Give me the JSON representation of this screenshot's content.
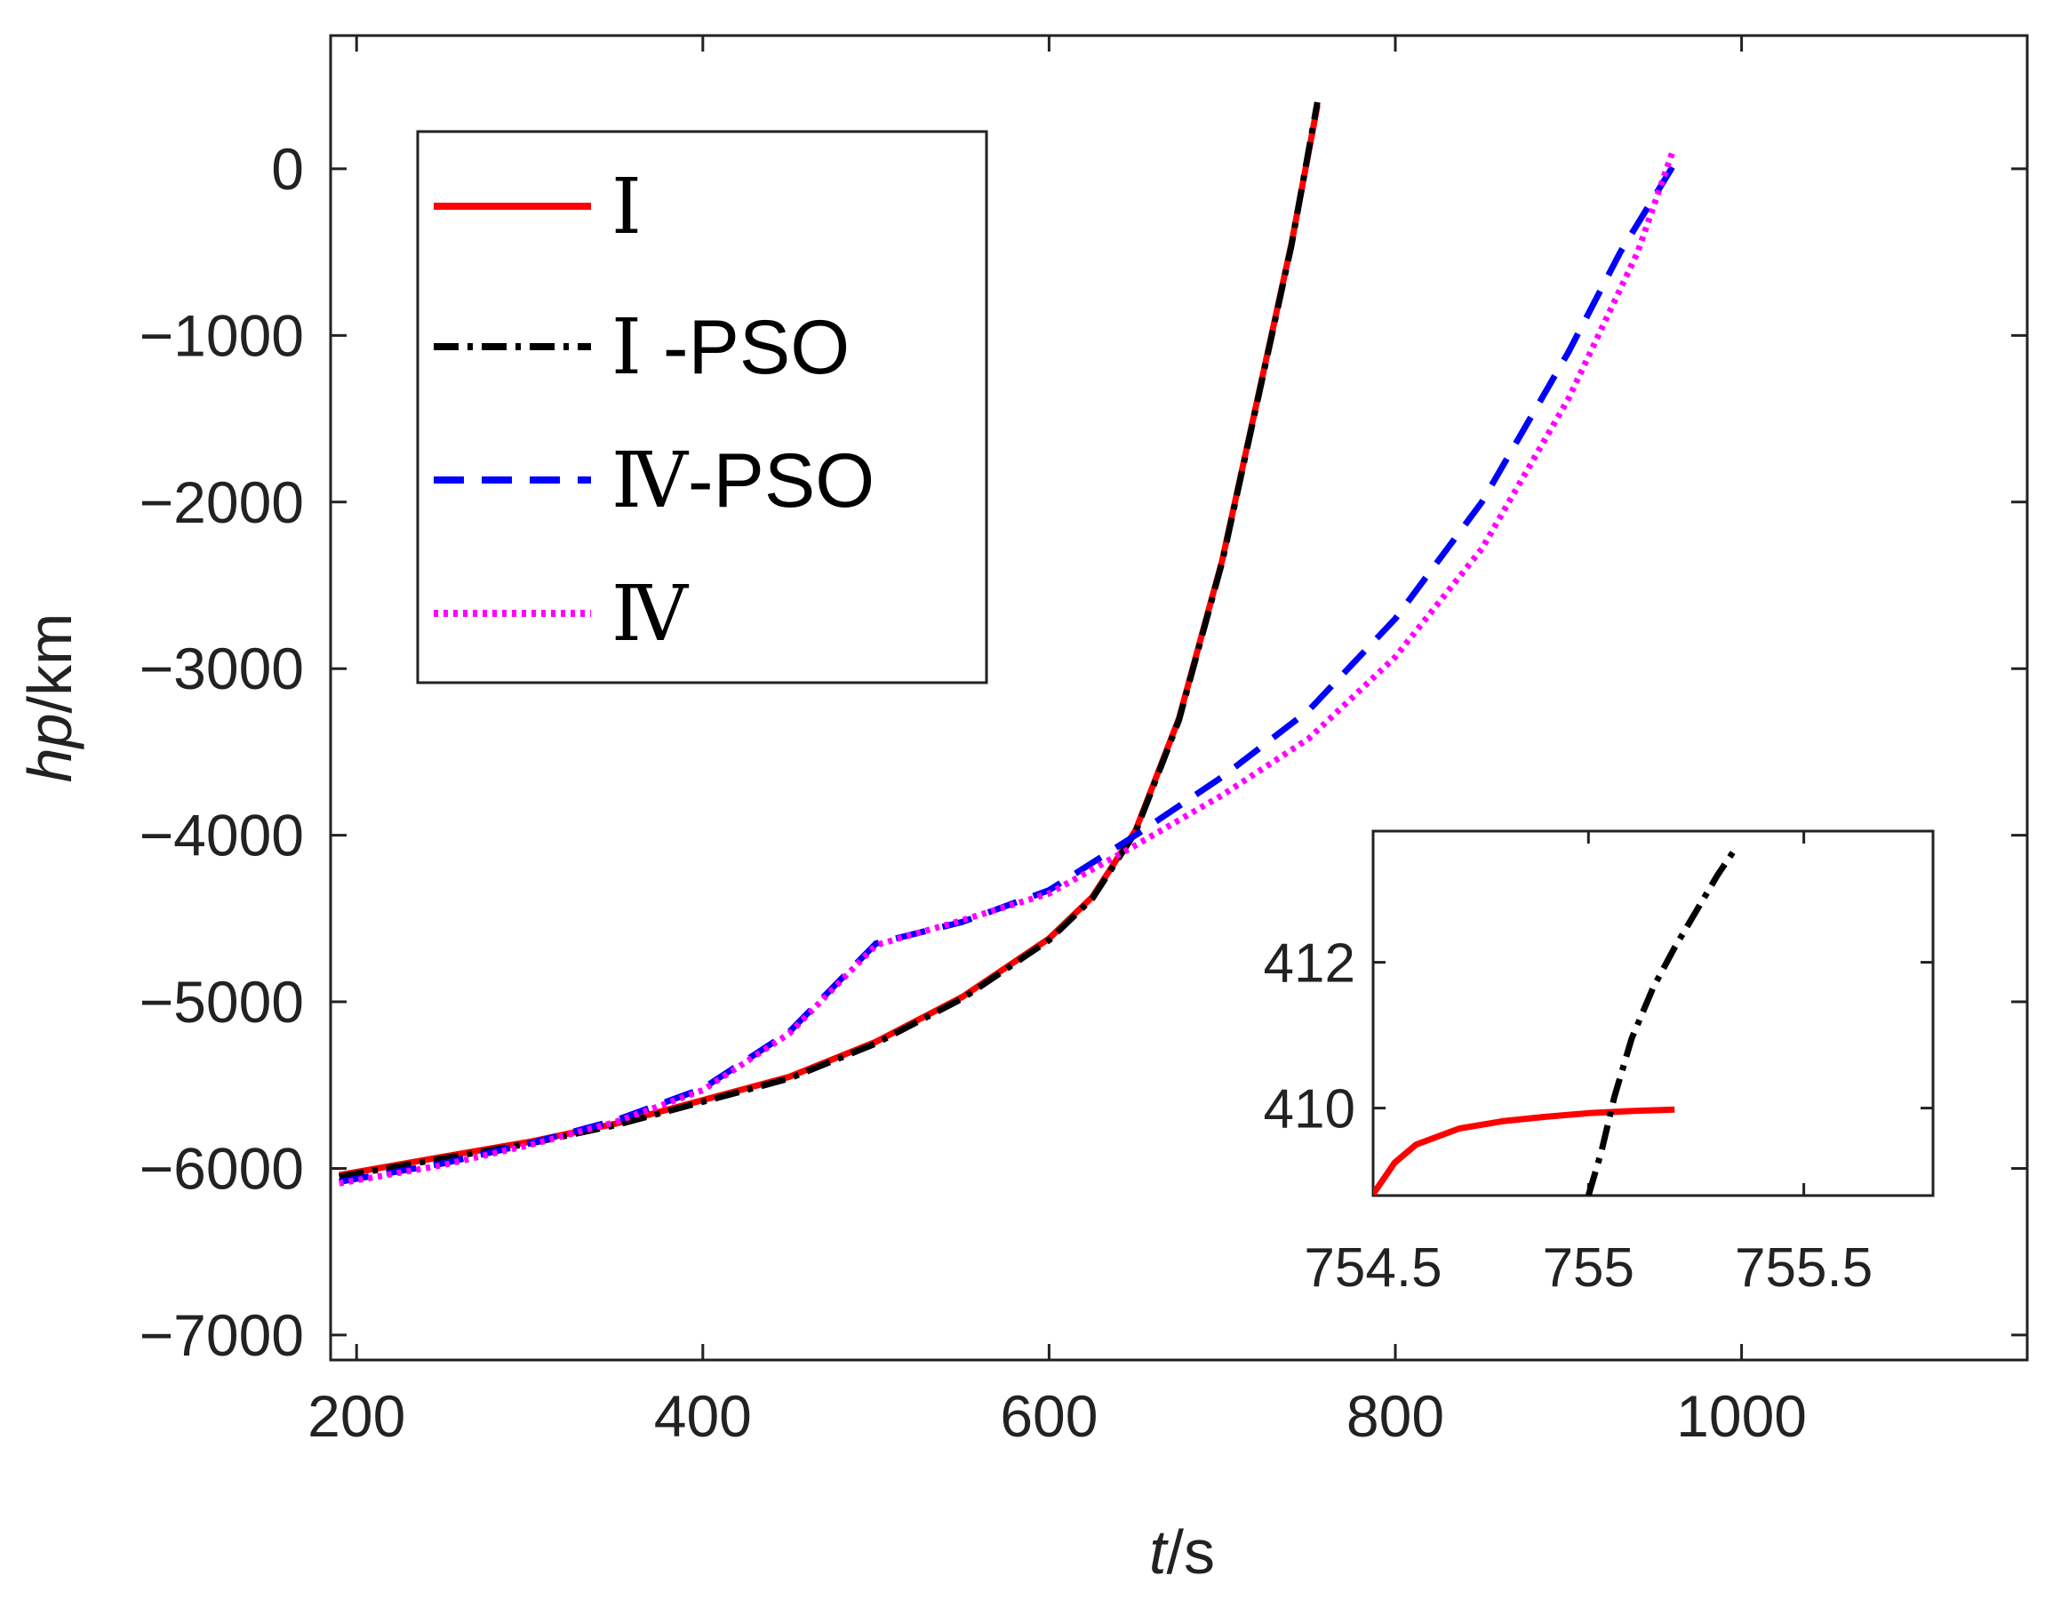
{
  "chart_data": [
    {
      "type": "line",
      "xlabel_italic": "t",
      "xlabel_unit": "/s",
      "ylabel_italic": "hp",
      "ylabel_unit": "/km",
      "xlim": [
        185,
        1165
      ],
      "ylim": [
        -7150,
        800
      ],
      "xticks": [
        200,
        400,
        600,
        800,
        1000
      ],
      "xtick_labels": [
        "200",
        "400",
        "600",
        "800",
        "1000"
      ],
      "yticks": [
        0,
        -1000,
        -2000,
        -3000,
        -4000,
        -5000,
        -6000,
        -7000
      ],
      "ytick_labels": [
        "0",
        "−1000",
        "−2000",
        "−3000",
        "−4000",
        "−5000",
        "−6000",
        "−7000"
      ],
      "legend_position": "top-left",
      "series": [
        {
          "name": "I",
          "roman": "Ⅰ",
          "suffix": "",
          "style": "solid",
          "color": "#ff0000",
          "x": [
            190,
            250,
            300,
            350,
            400,
            450,
            500,
            550,
            600,
            625,
            650,
            675,
            700,
            720,
            740,
            755
          ],
          "y": [
            -6040,
            -5930,
            -5840,
            -5730,
            -5590,
            -5450,
            -5240,
            -4970,
            -4620,
            -4370,
            -3970,
            -3300,
            -2350,
            -1400,
            -450,
            380
          ]
        },
        {
          "name": "I-PSO",
          "roman": "Ⅰ",
          "suffix": " -PSO",
          "style": "dashdot",
          "color": "#000000",
          "x": [
            190,
            250,
            300,
            350,
            400,
            450,
            500,
            550,
            600,
            625,
            650,
            675,
            700,
            720,
            740,
            755
          ],
          "y": [
            -6050,
            -5940,
            -5850,
            -5740,
            -5600,
            -5460,
            -5250,
            -4980,
            -4630,
            -4380,
            -3980,
            -3310,
            -2360,
            -1410,
            -460,
            400
          ]
        },
        {
          "name": "IV-PSO",
          "roman": "Ⅳ",
          "suffix": "-PSO",
          "style": "dashed",
          "color": "#0000ff",
          "x": [
            190,
            250,
            300,
            350,
            400,
            450,
            500,
            550,
            600,
            650,
            700,
            750,
            800,
            850,
            900,
            930,
            960
          ],
          "y": [
            -6080,
            -5970,
            -5850,
            -5710,
            -5520,
            -5180,
            -4650,
            -4520,
            -4330,
            -4000,
            -3650,
            -3250,
            -2700,
            -2000,
            -1100,
            -500,
            10
          ]
        },
        {
          "name": "IV",
          "roman": "Ⅳ",
          "suffix": "",
          "style": "dotted",
          "color": "#ff00ff",
          "x": [
            190,
            250,
            300,
            350,
            400,
            450,
            500,
            550,
            600,
            650,
            700,
            750,
            800,
            850,
            900,
            940,
            960
          ],
          "y": [
            -6090,
            -5980,
            -5860,
            -5720,
            -5530,
            -5190,
            -4660,
            -4510,
            -4350,
            -4060,
            -3760,
            -3420,
            -2930,
            -2280,
            -1380,
            -500,
            100
          ]
        }
      ]
    },
    {
      "type": "line",
      "title": "inset",
      "xlim": [
        754.5,
        755.8
      ],
      "ylim": [
        408.8,
        413.8
      ],
      "xticks": [
        754.5,
        755,
        755.5
      ],
      "xtick_labels": [
        "754.5",
        "755",
        "755.5"
      ],
      "yticks": [
        410,
        412
      ],
      "ytick_labels": [
        "410",
        "412"
      ],
      "series": [
        {
          "name": "I",
          "style": "solid",
          "color": "#ff0000",
          "x": [
            754.5,
            754.55,
            754.6,
            754.7,
            754.8,
            754.9,
            755.0,
            755.1,
            755.2
          ],
          "y": [
            408.82,
            409.25,
            409.5,
            409.72,
            409.82,
            409.88,
            409.93,
            409.96,
            409.98
          ]
        },
        {
          "name": "I-PSO",
          "style": "dashdot",
          "color": "#000000",
          "x": [
            755.0,
            755.03,
            755.06,
            755.1,
            755.15,
            755.2,
            755.26,
            755.3,
            755.34
          ],
          "y": [
            408.8,
            409.4,
            410.15,
            410.95,
            411.65,
            412.2,
            412.8,
            413.2,
            413.55
          ]
        }
      ]
    }
  ]
}
